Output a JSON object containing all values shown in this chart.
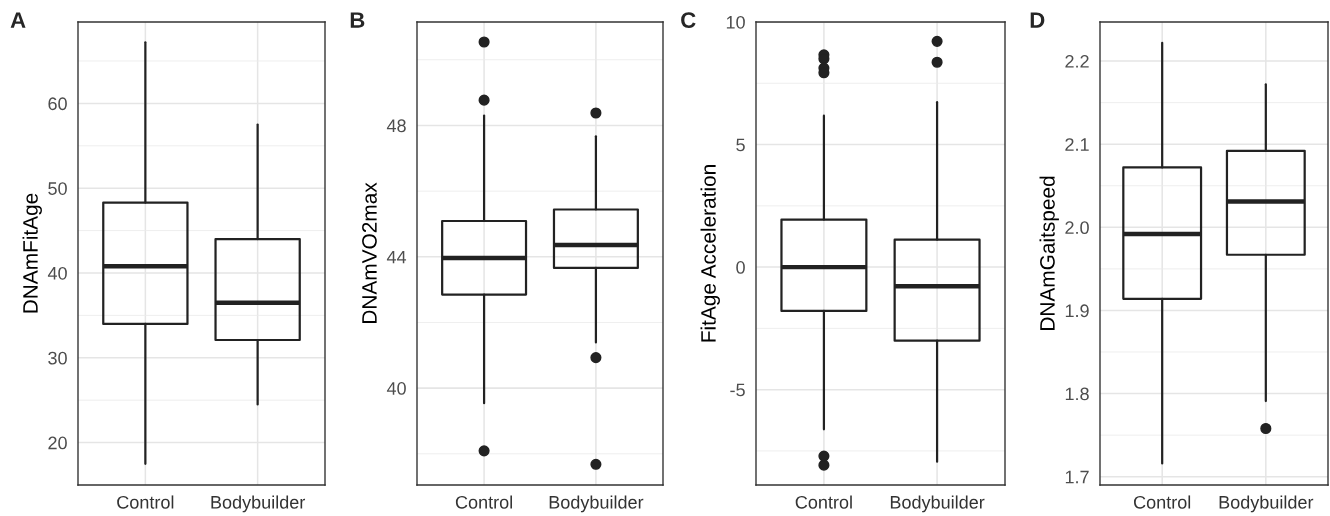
{
  "chart_data": [
    {
      "type": "box",
      "title": "A",
      "ylabel": "DNAmFitAge",
      "categories": [
        "Control",
        "Bodybuilder"
      ],
      "ylim": [
        15.0,
        69.6
      ],
      "yticks": [
        20,
        {
          "value": 25,
          "label": null
        },
        30,
        {
          "value": 35,
          "label": null
        },
        40,
        {
          "value": 45,
          "label": null
        },
        50,
        {
          "value": 55,
          "label": null
        },
        60,
        {
          "value": 65,
          "label": null
        }
      ],
      "grid": true,
      "color": "#222222",
      "boxes": [
        {
          "low": 17.5,
          "q1": 34.0,
          "median": 40.8,
          "q3": 48.3,
          "high": 67.2
        },
        {
          "low": 24.5,
          "q1": 32.1,
          "median": 36.5,
          "q3": 44.0,
          "high": 57.5
        }
      ]
    },
    {
      "type": "box",
      "title": "B",
      "ylabel": "DNAmVO2max",
      "categories": [
        "Control",
        "Bodybuilder"
      ],
      "ylim": [
        37.05,
        51.15
      ],
      "yticks": [
        {
          "value": 38,
          "label": null
        },
        40,
        {
          "value": 42,
          "label": null
        },
        44,
        {
          "value": 46,
          "label": null
        },
        48,
        {
          "value": 50,
          "label": null
        }
      ],
      "grid": true,
      "color": "#222222",
      "boxes": [
        {
          "low": 39.54,
          "q1": 42.85,
          "median": 43.96,
          "q3": 45.09,
          "high": 48.3,
          "outliers": [
            50.54,
            48.77,
            38.09
          ]
        },
        {
          "low": 41.39,
          "q1": 43.66,
          "median": 44.36,
          "q3": 45.44,
          "high": 47.67,
          "outliers": [
            48.38,
            40.93,
            37.68
          ]
        }
      ]
    },
    {
      "type": "box",
      "title": "C",
      "ylabel": "FitAge Acceleration",
      "categories": [
        "Control",
        "Bodybuilder"
      ],
      "ylim": [
        -8.89,
        10
      ],
      "yticks": [
        {
          "value": -7.5,
          "label": null
        },
        {
          "value": -5,
          "label": "-5"
        },
        {
          "value": -2.5,
          "label": null
        },
        0,
        {
          "value": 2.5,
          "label": null
        },
        5,
        {
          "value": 7.5,
          "label": null
        },
        10
      ],
      "grid": true,
      "color": "#222222",
      "boxes": [
        {
          "low": -6.62,
          "q1": -1.79,
          "median": 0,
          "q3": 1.94,
          "high": 6.18,
          "outliers": [
            8.66,
            8.5,
            8.12,
            7.93,
            -7.71,
            -8.08
          ]
        },
        {
          "low": -7.94,
          "q1": -3.0,
          "median": -0.78,
          "q3": 1.12,
          "high": 6.73,
          "outliers": [
            9.21,
            8.36
          ]
        }
      ]
    },
    {
      "type": "box",
      "title": "D",
      "ylabel": "DNAmGaitspeed",
      "categories": [
        "Control",
        "Bodybuilder"
      ],
      "ylim": [
        1.69,
        2.247
      ],
      "yticks": [
        {
          "value": 1.7,
          "label": "1.7"
        },
        {
          "value": 1.75,
          "label": null
        },
        {
          "value": 1.8,
          "label": "1.8"
        },
        {
          "value": 1.85,
          "label": null
        },
        {
          "value": 1.9,
          "label": "1.9"
        },
        {
          "value": 1.95,
          "label": null
        },
        {
          "value": 2.0,
          "label": "2.0"
        },
        {
          "value": 2.05,
          "label": null
        },
        {
          "value": 2.1,
          "label": "2.1"
        },
        {
          "value": 2.15,
          "label": null
        },
        {
          "value": 2.2,
          "label": "2.2"
        }
      ],
      "grid": true,
      "color": "#222222",
      "boxes": [
        {
          "low": 1.716,
          "q1": 1.914,
          "median": 1.992,
          "q3": 2.072,
          "high": 2.222
        },
        {
          "low": 1.791,
          "q1": 1.967,
          "median": 2.031,
          "q3": 2.092,
          "high": 2.172,
          "outliers": [
            1.758
          ]
        }
      ]
    }
  ]
}
